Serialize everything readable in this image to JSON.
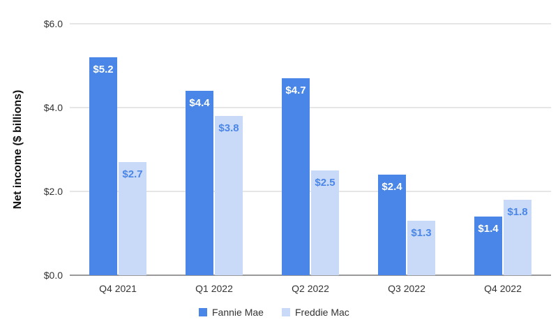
{
  "chart_data": {
    "type": "bar",
    "categories": [
      "Q4 2021",
      "Q1 2022",
      "Q2 2022",
      "Q3 2022",
      "Q4 2022"
    ],
    "series": [
      {
        "name": "Fannie Mae",
        "values": [
          5.2,
          4.4,
          4.7,
          2.4,
          1.4
        ],
        "labels": [
          "$5.2",
          "$4.4",
          "$4.7",
          "$2.4",
          "$1.4"
        ],
        "color": "#4a86e8",
        "label_color": "#ffffff"
      },
      {
        "name": "Freddie Mac",
        "values": [
          2.7,
          3.8,
          2.5,
          1.3,
          1.8
        ],
        "labels": [
          "$2.7",
          "$3.8",
          "$2.5",
          "$1.3",
          "$1.8"
        ],
        "color": "#c9daf8",
        "label_color": "#4a86e8"
      }
    ],
    "title": "",
    "xlabel": "",
    "ylabel": "Net income ($ billions)",
    "ylim": [
      0,
      6
    ],
    "yticks": [
      0,
      2,
      4,
      6
    ],
    "ytick_labels": [
      "$0.0",
      "$2.0",
      "$4.0",
      "$6.0"
    ],
    "grid": true,
    "legend_position": "bottom"
  }
}
